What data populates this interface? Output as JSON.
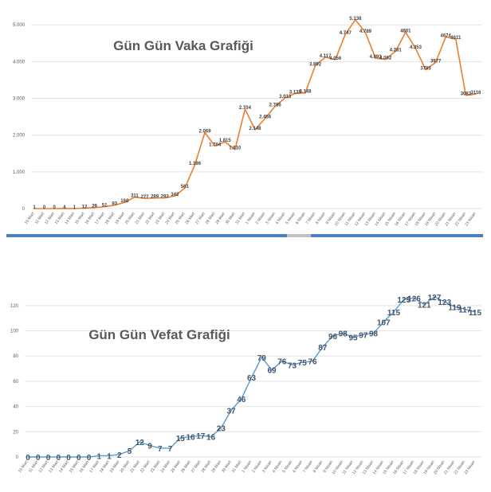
{
  "chart_data": [
    {
      "type": "line",
      "title": "Gün Gün Vaka Grafiği",
      "color": "#ed7d31",
      "label_color": "#404040",
      "grid": true,
      "xlabel": "",
      "ylabel": "",
      "ylim": [
        0,
        5200
      ],
      "yticks": [
        0,
        1000,
        2000,
        3000,
        4000,
        5000
      ],
      "ytick_labels": [
        "0",
        "1.000",
        "2.000",
        "3.000",
        "4.000",
        "5.000"
      ],
      "categories": [
        "10 Mart",
        "11 Mart",
        "12 Mart",
        "13 Mart",
        "14 Mart",
        "15 Mart",
        "16 Mart",
        "17 Mart",
        "18 Mart",
        "19 Mart",
        "20 Mart",
        "21 Mart",
        "22 Mart",
        "23 Mart",
        "24 Mart",
        "25 Mart",
        "26 Mart",
        "27 Mart",
        "28 Mart",
        "29 Mart",
        "30 Mart",
        "31 Mart",
        "1 Nisan",
        "2 Nisan",
        "3 Nisan",
        "4 Nisan",
        "5 Nisan",
        "6 Nisan",
        "7 Nisan",
        "8 Nisan",
        "9 Nisan",
        "10 Nisan",
        "11 Nisan",
        "12 Nisan",
        "13 Nisan",
        "14 Nisan",
        "15 Nisan",
        "16 Nisan",
        "17 Nisan",
        "18 Nisan",
        "19 Nisan",
        "20 Nisan",
        "21 Nisan",
        "22 Nisan",
        "23 Nisan"
      ],
      "values": [
        1,
        0,
        0,
        4,
        1,
        12,
        29,
        51,
        93,
        168,
        311,
        277,
        289,
        293,
        343,
        561,
        1196,
        2069,
        1704,
        1815,
        1610,
        2704,
        2148,
        2456,
        2786,
        3013,
        3135,
        3148,
        3892,
        4117,
        4056,
        4747,
        5138,
        4789,
        4093,
        4062,
        4281,
        4801,
        4353,
        3783,
        3977,
        4674,
        4611,
        3083,
        3116
      ],
      "value_labels": [
        "1",
        "0",
        "0",
        "4",
        "1",
        "12",
        "29",
        "51",
        "93",
        "168",
        "311",
        "277",
        "289",
        "293",
        "343",
        "561",
        "1.196",
        "2.069",
        "1.704",
        "1.815",
        "1.610",
        "2.704",
        "2.148",
        "2.456",
        "2.786",
        "3.013",
        "3.135",
        "3.148",
        "3.892",
        "4.117",
        "4.056",
        "4.747",
        "5.138",
        "4.789",
        "4.093",
        "4.062",
        "4.281",
        "4801",
        "4.353",
        "3783",
        "3977",
        "4674",
        "4611",
        "3083",
        "3116"
      ]
    },
    {
      "type": "line",
      "title": "Gün Gün Vefat Grafiği",
      "color": "#5b9bd5",
      "label_color": "#44546a",
      "grid": true,
      "xlabel": "",
      "ylabel": "",
      "ylim": [
        0,
        130
      ],
      "yticks": [
        0,
        20,
        40,
        60,
        80,
        100,
        120
      ],
      "ytick_labels": [
        "0",
        "20",
        "40",
        "60",
        "80",
        "100",
        "120"
      ],
      "categories": [
        "10 Mart",
        "11 Mart",
        "12 Mart",
        "13 Mart",
        "14 Mart",
        "15 Mart",
        "16 Mart",
        "17 Mart",
        "18 Mart",
        "19 Mart",
        "20 Mart",
        "21 Mart",
        "22 Mart",
        "23 Mart",
        "24 Mart",
        "25 Mart",
        "26 Mart",
        "27 Mart",
        "28 Mart",
        "29 Mart",
        "30 Mart",
        "31 Mart",
        "1 Nisan",
        "2 Nisan",
        "3 Nisan",
        "4 Nisan",
        "5 Nisan",
        "6 Nisan",
        "7 Nisan",
        "8 Nisan",
        "9 Nisan",
        "10 Nisan",
        "11 Nisan",
        "12 Nisan",
        "13 Nisan",
        "14 Nisan",
        "15 Nisan",
        "16 Nisan",
        "17 Nisan",
        "18 Nisan",
        "19 Nisan",
        "20 Nisan",
        "21 Nisan",
        "22 Nisan",
        "23 Nisan"
      ],
      "values": [
        0,
        0,
        0,
        0,
        0,
        0,
        0,
        1,
        1,
        2,
        5,
        12,
        9,
        7,
        7,
        15,
        16,
        17,
        16,
        23,
        37,
        46,
        63,
        79,
        69,
        76,
        73,
        75,
        76,
        87,
        96,
        98,
        95,
        97,
        98,
        107,
        115,
        125,
        126,
        121,
        127,
        123,
        119,
        117,
        115
      ],
      "value_labels": [
        "0",
        "0",
        "0",
        "0",
        "0",
        "0",
        "0",
        "1",
        "1",
        "2",
        "5",
        "12",
        "9",
        "7",
        "7",
        "15",
        "16",
        "17",
        "16",
        "23",
        "37",
        "46",
        "63",
        "79",
        "69",
        "76",
        "73",
        "75",
        "76",
        "87",
        "96",
        "98",
        "95",
        "97",
        "98",
        "107",
        "115",
        "125",
        "126",
        "121",
        "127",
        "123",
        "119",
        "117",
        "115"
      ]
    }
  ]
}
